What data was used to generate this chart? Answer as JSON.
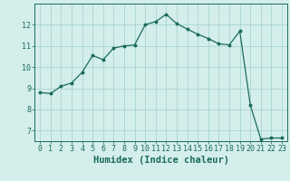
{
  "x": [
    0,
    1,
    2,
    3,
    4,
    5,
    6,
    7,
    8,
    9,
    10,
    11,
    12,
    13,
    14,
    15,
    16,
    17,
    18,
    19,
    20,
    21,
    22,
    23
  ],
  "y": [
    8.8,
    8.75,
    9.1,
    9.25,
    9.75,
    10.55,
    10.35,
    10.9,
    11.0,
    11.05,
    12.0,
    12.15,
    12.5,
    12.05,
    11.8,
    11.55,
    11.35,
    11.1,
    11.05,
    11.7,
    8.2,
    6.6,
    6.65,
    6.65
  ],
  "line_color": "#1a6b5a",
  "marker": "o",
  "markersize": 1.8,
  "linewidth": 0.9,
  "xlabel": "Humidex (Indice chaleur)",
  "xlim": [
    -0.5,
    23.5
  ],
  "ylim": [
    6.5,
    13.0
  ],
  "yticks": [
    7,
    8,
    9,
    10,
    11,
    12
  ],
  "xticks": [
    0,
    1,
    2,
    3,
    4,
    5,
    6,
    7,
    8,
    9,
    10,
    11,
    12,
    13,
    14,
    15,
    16,
    17,
    18,
    19,
    20,
    21,
    22,
    23
  ],
  "bg_color": "#d4eeeb",
  "grid_color": "#a8d5d0",
  "tick_label_fontsize": 6,
  "xlabel_fontsize": 7.5
}
